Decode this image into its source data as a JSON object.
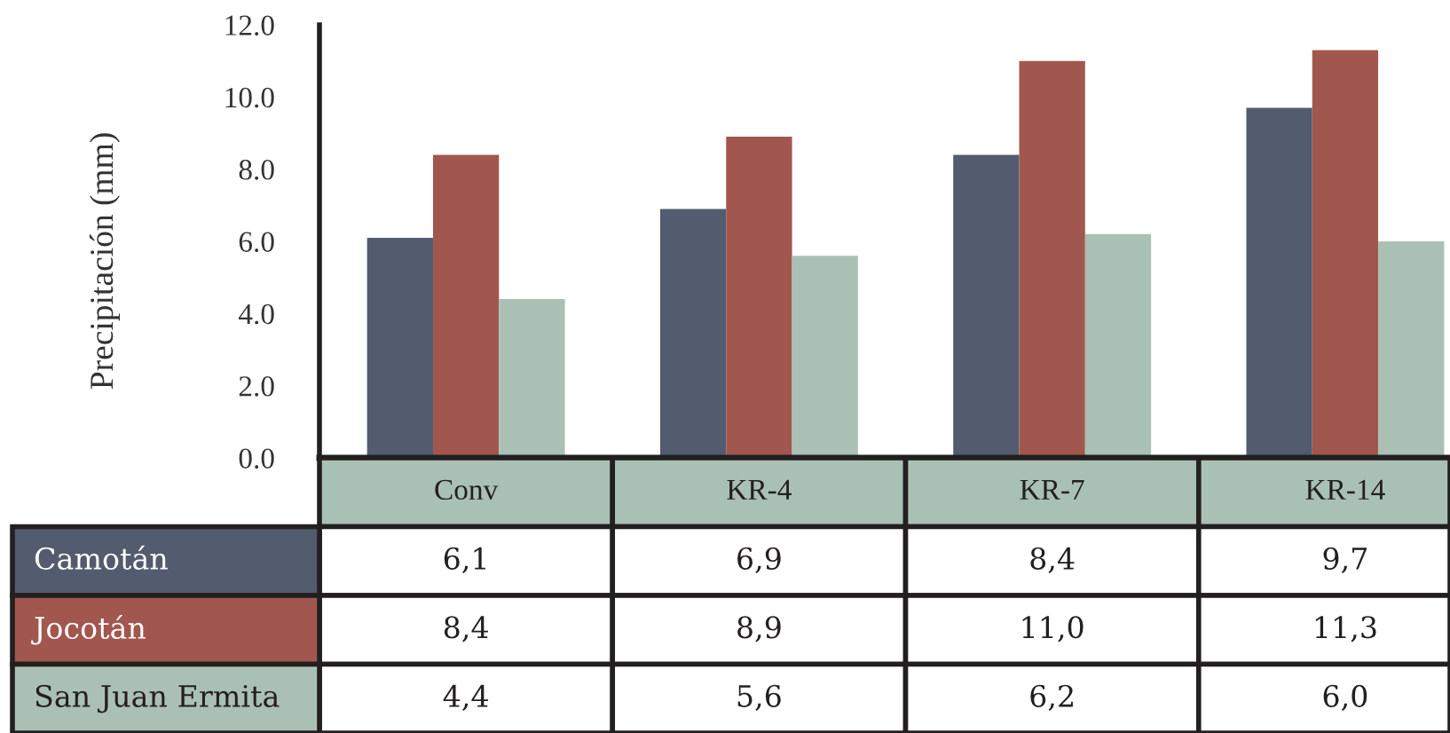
{
  "chart_data": {
    "type": "bar",
    "ylabel": "Precipitación (mm)",
    "categories": [
      "Conv",
      "KR-4",
      "KR-7",
      "KR-14"
    ],
    "series": [
      {
        "name": "Camotán",
        "color": "#525c6e",
        "values": [
          6.1,
          6.9,
          8.4,
          9.7
        ],
        "value_labels": [
          "6,1",
          "6,9",
          "8,4",
          "9,7"
        ]
      },
      {
        "name": "Jocotán",
        "color": "#a1574e",
        "values": [
          8.4,
          8.9,
          11.0,
          11.3
        ],
        "value_labels": [
          "8,4",
          "8,9",
          "11,0",
          "11,3"
        ]
      },
      {
        "name": "San Juan Ermita",
        "color": "#aac0b4",
        "values": [
          4.4,
          5.6,
          6.2,
          6.0
        ],
        "value_labels": [
          "4,4",
          "5,6",
          "6,2",
          "6,0"
        ]
      }
    ],
    "ylim": [
      0,
      12
    ],
    "yticks": [
      {
        "value": 0,
        "label": "0.0"
      },
      {
        "value": 2,
        "label": "2.0"
      },
      {
        "value": 4,
        "label": "4.0"
      },
      {
        "value": 6,
        "label": "6.0"
      },
      {
        "value": 8,
        "label": "8.0"
      },
      {
        "value": 10,
        "label": "10.0"
      },
      {
        "value": 12,
        "label": "12.0"
      }
    ],
    "grid": false,
    "legend": "bottom"
  }
}
